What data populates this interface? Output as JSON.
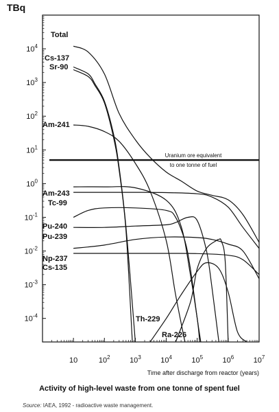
{
  "chart_data": {
    "type": "line",
    "title": "Activity of high-level waste from one tonne of spent fuel",
    "ylabel": "TBq",
    "xlabel": "Time after discharge from reactor (years)",
    "xscale": "log",
    "yscale": "log",
    "xlim": [
      1,
      10000000
    ],
    "ylim": [
      2e-05,
      100000
    ],
    "x_ticks": [
      1,
      10,
      100,
      1000,
      10000,
      100000,
      1000000,
      10000000
    ],
    "x_tick_labels": [
      {
        "base": "10",
        "exp": ""
      },
      {
        "base": "10",
        "exp": "2"
      },
      {
        "base": "10",
        "exp": "3"
      },
      {
        "base": "10",
        "exp": "4"
      },
      {
        "base": "10",
        "exp": "5"
      },
      {
        "base": "10",
        "exp": "6"
      },
      {
        "base": "10",
        "exp": "7"
      }
    ],
    "y_tick_labels": [
      {
        "base": "10",
        "exp": "4"
      },
      {
        "base": "10",
        "exp": "3"
      },
      {
        "base": "10",
        "exp": "2"
      },
      {
        "base": "10",
        "exp": "1"
      },
      {
        "base": "10",
        "exp": "0"
      },
      {
        "base": "10",
        "exp": "-1"
      },
      {
        "base": "10",
        "exp": "-2"
      },
      {
        "base": "10",
        "exp": "-3"
      },
      {
        "base": "10",
        "exp": "-4"
      }
    ],
    "reference_line": {
      "value": 5,
      "label_line1": "Uranium ore equivalent",
      "label_line2": "to one tonne of fuel"
    },
    "series": [
      {
        "name": "Total",
        "x": [
          10,
          30,
          100,
          300,
          1000,
          3000,
          10000,
          30000,
          100000,
          300000,
          1000000,
          3000000,
          10000000
        ],
        "y": [
          12000,
          8000,
          1800,
          120,
          20,
          6,
          2.2,
          1.2,
          0.6,
          0.45,
          0.33,
          0.12,
          0.018
        ]
      },
      {
        "name": "Cs-137",
        "x": [
          10,
          30,
          50,
          100,
          200,
          300,
          500,
          1000
        ],
        "y": [
          2900,
          1800,
          900,
          280,
          28,
          3,
          0.05,
          2e-05
        ]
      },
      {
        "name": "Sr-90",
        "x": [
          10,
          30,
          50,
          100,
          200,
          300,
          500,
          800
        ],
        "y": [
          2400,
          1500,
          800,
          250,
          22,
          2.5,
          0.04,
          2e-05
        ]
      },
      {
        "name": "Am-241",
        "x": [
          10,
          30,
          100,
          300,
          1000,
          3000,
          10000,
          20000,
          40000
        ],
        "y": [
          55,
          50,
          35,
          18,
          4,
          0.6,
          0.02,
          0.0005,
          2e-05
        ]
      },
      {
        "name": "Am-243",
        "x": [
          10,
          100,
          1000,
          10000,
          30000,
          60000,
          100000,
          120000
        ],
        "y": [
          0.8,
          0.8,
          0.75,
          0.32,
          0.055,
          0.002,
          0.0001,
          2e-05
        ]
      },
      {
        "name": "Tc-99",
        "x": [
          10,
          100,
          1000,
          10000,
          100000,
          300000,
          1000000,
          3000000,
          10000000
        ],
        "y": [
          0.55,
          0.55,
          0.55,
          0.54,
          0.5,
          0.4,
          0.2,
          0.05,
          0.012
        ]
      },
      {
        "name": "Pu-240",
        "x": [
          10,
          30,
          100,
          1000,
          10000,
          20000,
          40000,
          60000,
          100000,
          130000
        ],
        "y": [
          0.1,
          0.16,
          0.19,
          0.19,
          0.16,
          0.1,
          0.02,
          0.003,
          0.0001,
          2e-05
        ]
      },
      {
        "name": "Pu-239",
        "x": [
          10,
          100,
          1000,
          10000,
          20000,
          50000,
          100000,
          200000,
          300000,
          500000
        ],
        "y": [
          0.05,
          0.05,
          0.055,
          0.06,
          0.07,
          0.1,
          0.08,
          0.01,
          0.0008,
          2e-05
        ]
      },
      {
        "name": "Np-237",
        "x": [
          10,
          100,
          1000,
          10000,
          100000,
          300000,
          1000000,
          3000000,
          10000000
        ],
        "y": [
          0.012,
          0.015,
          0.022,
          0.026,
          0.025,
          0.022,
          0.016,
          0.01,
          0.0015
        ]
      },
      {
        "name": "Cs-135",
        "x": [
          10,
          100,
          1000,
          10000,
          100000,
          1000000,
          3000000,
          10000000
        ],
        "y": [
          0.0085,
          0.0085,
          0.0085,
          0.0085,
          0.0084,
          0.0075,
          0.0055,
          0.002
        ]
      },
      {
        "name": "Th-229",
        "x": [
          3000,
          10000,
          30000,
          100000,
          200000,
          500000,
          1000000,
          2000000,
          4000000
        ],
        "y": [
          2e-05,
          0.0001,
          0.0005,
          0.0025,
          0.0045,
          0.003,
          0.0006,
          4e-05,
          2e-05
        ]
      },
      {
        "name": "Ra-226",
        "x": [
          20000,
          60000,
          100000,
          200000,
          400000,
          500000,
          600000,
          800000,
          1000000
        ],
        "y": [
          2e-05,
          0.0003,
          0.003,
          0.012,
          0.02,
          0.022,
          0.02,
          0.005,
          2e-05
        ]
      }
    ],
    "caption": "Activity of high-level waste from one tonne of spent fuel",
    "source_label": "Source:",
    "source_text": " IAEA, 1992 - radioactive waste management."
  }
}
